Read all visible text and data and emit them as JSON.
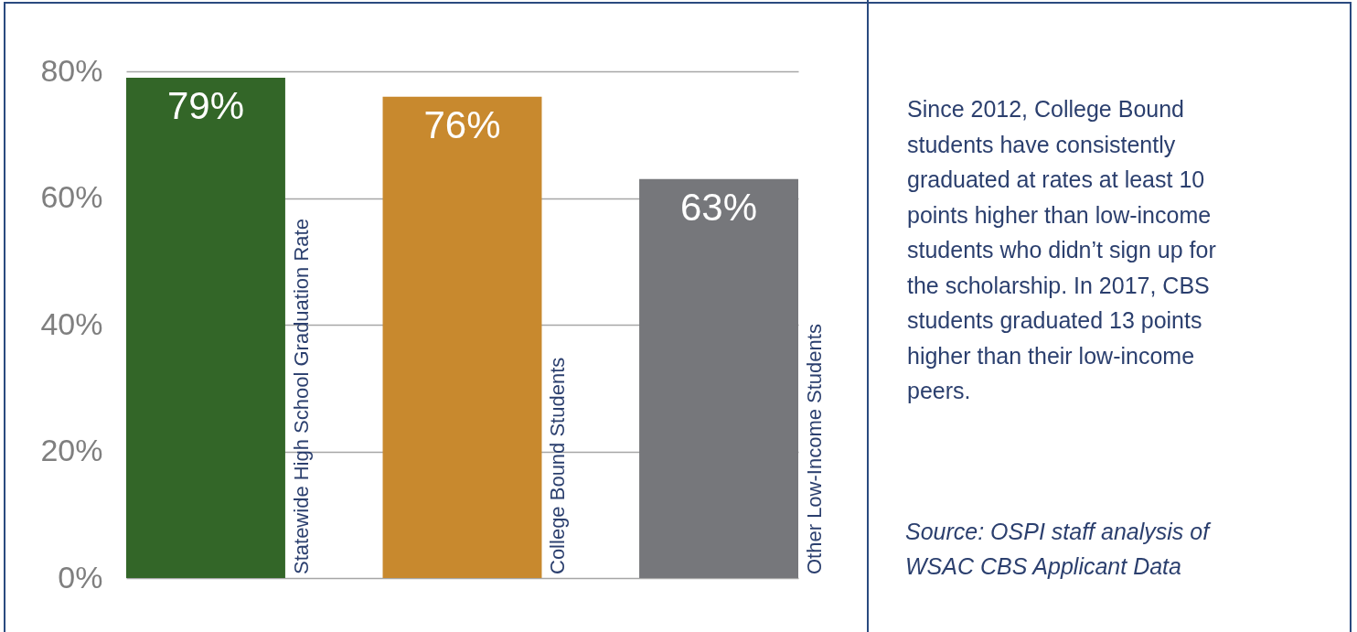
{
  "chart_data": {
    "type": "bar",
    "categories": [
      "Statewide High School Graduation Rate",
      "College Bound Students",
      "Other Low-Income Students"
    ],
    "values": [
      79,
      76,
      63
    ],
    "colors": [
      "#336628",
      "#c8892e",
      "#76777b"
    ],
    "ylim": [
      0,
      80
    ],
    "yticks": [
      {
        "value": 0,
        "label": "0%"
      },
      {
        "value": 20,
        "label": "20%"
      },
      {
        "value": 40,
        "label": "40%"
      },
      {
        "value": 60,
        "label": "60%"
      },
      {
        "value": 80,
        "label": "80%"
      }
    ],
    "grid": "y",
    "value_labels": [
      "79%",
      "76%",
      "63%"
    ],
    "annotations": [
      "Since 2012, College Bound students have consistently graduated at rates at least 10 points higher than low-income students who didn’t sign up for the scholarship. In 2017, CBS students graduated 13 points higher than their low-income peers.",
      "Source: OSPI staff analysis of WSAC CBS Applicant Data"
    ]
  }
}
